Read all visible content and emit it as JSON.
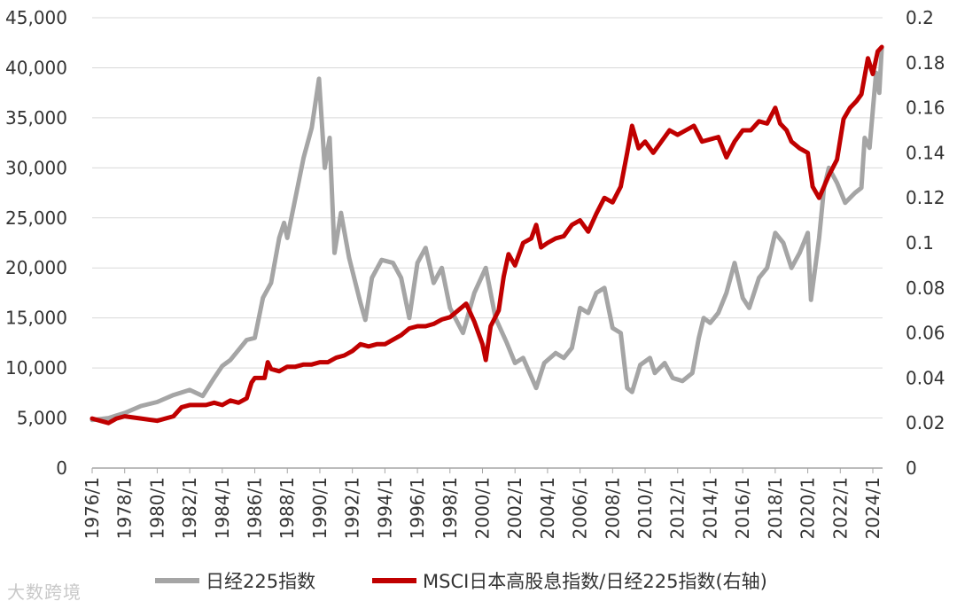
{
  "chart_data": {
    "type": "line",
    "title": "",
    "xlabel": "",
    "ylabel": "",
    "x_range": [
      1976.0,
      2024.6
    ],
    "x_ticks": [
      "1976/1",
      "1978/1",
      "1980/1",
      "1982/1",
      "1984/1",
      "1986/1",
      "1988/1",
      "1990/1",
      "1992/1",
      "1994/1",
      "1996/1",
      "1998/1",
      "2000/1",
      "2002/1",
      "2004/1",
      "2006/1",
      "2008/1",
      "2010/1",
      "2012/1",
      "2014/1",
      "2016/1",
      "2018/1",
      "2020/1",
      "2022/1",
      "2024/1"
    ],
    "y_left": {
      "range": [
        0,
        45000
      ],
      "ticks": [
        "0",
        "5,000",
        "10,000",
        "15,000",
        "20,000",
        "25,000",
        "30,000",
        "35,000",
        "40,000",
        "45,000"
      ]
    },
    "y_right": {
      "range": [
        0,
        0.2
      ],
      "ticks": [
        "0",
        "0.02",
        "0.04",
        "0.06",
        "0.08",
        "0.1",
        "0.12",
        "0.14",
        "0.16",
        "0.18",
        "0.2"
      ]
    },
    "grid": "horizontal",
    "legend_position": "bottom",
    "series": [
      {
        "name": "日经225指数",
        "axis": "left",
        "color": "#a5a5a5",
        "points": [
          [
            1976.0,
            4800
          ],
          [
            1977.0,
            5000
          ],
          [
            1978.0,
            5500
          ],
          [
            1979.0,
            6200
          ],
          [
            1980.0,
            6600
          ],
          [
            1981.0,
            7300
          ],
          [
            1982.0,
            7800
          ],
          [
            1982.8,
            7200
          ],
          [
            1983.5,
            9000
          ],
          [
            1984.0,
            10200
          ],
          [
            1984.5,
            10800
          ],
          [
            1985.0,
            11800
          ],
          [
            1985.5,
            12800
          ],
          [
            1986.0,
            13000
          ],
          [
            1986.5,
            17000
          ],
          [
            1987.0,
            18500
          ],
          [
            1987.5,
            23000
          ],
          [
            1987.8,
            24500
          ],
          [
            1988.0,
            23000
          ],
          [
            1988.5,
            27000
          ],
          [
            1989.0,
            31000
          ],
          [
            1989.5,
            34000
          ],
          [
            1989.95,
            38900
          ],
          [
            1990.3,
            30000
          ],
          [
            1990.6,
            33000
          ],
          [
            1990.9,
            21500
          ],
          [
            1991.3,
            25500
          ],
          [
            1991.8,
            21000
          ],
          [
            1992.5,
            16500
          ],
          [
            1992.8,
            14800
          ],
          [
            1993.2,
            19000
          ],
          [
            1993.8,
            20800
          ],
          [
            1994.5,
            20500
          ],
          [
            1995.0,
            19000
          ],
          [
            1995.5,
            15000
          ],
          [
            1996.0,
            20500
          ],
          [
            1996.5,
            22000
          ],
          [
            1997.0,
            18500
          ],
          [
            1997.5,
            20000
          ],
          [
            1998.0,
            16000
          ],
          [
            1998.8,
            13500
          ],
          [
            1999.5,
            17500
          ],
          [
            2000.2,
            20000
          ],
          [
            2000.8,
            15000
          ],
          [
            2001.5,
            12500
          ],
          [
            2002.0,
            10500
          ],
          [
            2002.5,
            11000
          ],
          [
            2003.3,
            8000
          ],
          [
            2003.8,
            10500
          ],
          [
            2004.5,
            11500
          ],
          [
            2005.0,
            11000
          ],
          [
            2005.5,
            12000
          ],
          [
            2006.0,
            16000
          ],
          [
            2006.5,
            15500
          ],
          [
            2007.0,
            17500
          ],
          [
            2007.5,
            18000
          ],
          [
            2008.0,
            14000
          ],
          [
            2008.5,
            13500
          ],
          [
            2008.9,
            8000
          ],
          [
            2009.2,
            7600
          ],
          [
            2009.7,
            10300
          ],
          [
            2010.3,
            11000
          ],
          [
            2010.6,
            9500
          ],
          [
            2011.2,
            10500
          ],
          [
            2011.7,
            9000
          ],
          [
            2012.3,
            8700
          ],
          [
            2012.9,
            9500
          ],
          [
            2013.3,
            13000
          ],
          [
            2013.6,
            15000
          ],
          [
            2014.0,
            14500
          ],
          [
            2014.5,
            15500
          ],
          [
            2015.0,
            17500
          ],
          [
            2015.5,
            20500
          ],
          [
            2016.0,
            17000
          ],
          [
            2016.4,
            16000
          ],
          [
            2017.0,
            19000
          ],
          [
            2017.5,
            20000
          ],
          [
            2018.0,
            23500
          ],
          [
            2018.5,
            22500
          ],
          [
            2019.0,
            20000
          ],
          [
            2019.5,
            21500
          ],
          [
            2020.0,
            23500
          ],
          [
            2020.2,
            16800
          ],
          [
            2020.7,
            23000
          ],
          [
            2021.0,
            28000
          ],
          [
            2021.3,
            30000
          ],
          [
            2021.8,
            28500
          ],
          [
            2022.3,
            26500
          ],
          [
            2022.9,
            27500
          ],
          [
            2023.3,
            28000
          ],
          [
            2023.5,
            33000
          ],
          [
            2023.8,
            32000
          ],
          [
            2024.2,
            39500
          ],
          [
            2024.4,
            37500
          ],
          [
            2024.55,
            42000
          ]
        ]
      },
      {
        "name": "MSCI日本高股息指数/日经225指数(右轴)",
        "axis": "right",
        "color": "#c00000",
        "points": [
          [
            1976.0,
            0.022
          ],
          [
            1976.5,
            0.021
          ],
          [
            1977.0,
            0.02
          ],
          [
            1977.5,
            0.022
          ],
          [
            1978.0,
            0.023
          ],
          [
            1979.0,
            0.022
          ],
          [
            1980.0,
            0.021
          ],
          [
            1980.5,
            0.022
          ],
          [
            1981.0,
            0.023
          ],
          [
            1981.5,
            0.027
          ],
          [
            1982.0,
            0.028
          ],
          [
            1983.0,
            0.028
          ],
          [
            1983.5,
            0.029
          ],
          [
            1984.0,
            0.028
          ],
          [
            1984.5,
            0.03
          ],
          [
            1985.0,
            0.029
          ],
          [
            1985.5,
            0.031
          ],
          [
            1985.8,
            0.038
          ],
          [
            1986.0,
            0.04
          ],
          [
            1986.6,
            0.04
          ],
          [
            1986.8,
            0.047
          ],
          [
            1987.0,
            0.044
          ],
          [
            1987.5,
            0.043
          ],
          [
            1988.0,
            0.045
          ],
          [
            1988.5,
            0.045
          ],
          [
            1989.0,
            0.046
          ],
          [
            1989.5,
            0.046
          ],
          [
            1990.0,
            0.047
          ],
          [
            1990.5,
            0.047
          ],
          [
            1991.0,
            0.049
          ],
          [
            1991.5,
            0.05
          ],
          [
            1992.0,
            0.052
          ],
          [
            1992.5,
            0.055
          ],
          [
            1993.0,
            0.054
          ],
          [
            1993.5,
            0.055
          ],
          [
            1994.0,
            0.055
          ],
          [
            1994.5,
            0.057
          ],
          [
            1995.0,
            0.059
          ],
          [
            1995.5,
            0.062
          ],
          [
            1996.0,
            0.063
          ],
          [
            1996.5,
            0.063
          ],
          [
            1997.0,
            0.064
          ],
          [
            1997.5,
            0.066
          ],
          [
            1998.0,
            0.067
          ],
          [
            1998.5,
            0.07
          ],
          [
            1999.0,
            0.073
          ],
          [
            1999.5,
            0.065
          ],
          [
            2000.0,
            0.055
          ],
          [
            2000.2,
            0.048
          ],
          [
            2000.5,
            0.063
          ],
          [
            2001.0,
            0.07
          ],
          [
            2001.3,
            0.085
          ],
          [
            2001.6,
            0.095
          ],
          [
            2002.0,
            0.09
          ],
          [
            2002.5,
            0.1
          ],
          [
            2003.0,
            0.102
          ],
          [
            2003.3,
            0.108
          ],
          [
            2003.6,
            0.098
          ],
          [
            2004.0,
            0.1
          ],
          [
            2004.5,
            0.102
          ],
          [
            2005.0,
            0.103
          ],
          [
            2005.5,
            0.108
          ],
          [
            2006.0,
            0.11
          ],
          [
            2006.5,
            0.105
          ],
          [
            2007.0,
            0.113
          ],
          [
            2007.5,
            0.12
          ],
          [
            2008.0,
            0.118
          ],
          [
            2008.5,
            0.125
          ],
          [
            2008.9,
            0.14
          ],
          [
            2009.2,
            0.152
          ],
          [
            2009.6,
            0.142
          ],
          [
            2010.0,
            0.145
          ],
          [
            2010.5,
            0.14
          ],
          [
            2011.0,
            0.145
          ],
          [
            2011.5,
            0.15
          ],
          [
            2012.0,
            0.148
          ],
          [
            2012.5,
            0.15
          ],
          [
            2013.0,
            0.152
          ],
          [
            2013.5,
            0.145
          ],
          [
            2014.0,
            0.146
          ],
          [
            2014.5,
            0.147
          ],
          [
            2015.0,
            0.138
          ],
          [
            2015.5,
            0.145
          ],
          [
            2016.0,
            0.15
          ],
          [
            2016.5,
            0.15
          ],
          [
            2017.0,
            0.154
          ],
          [
            2017.5,
            0.153
          ],
          [
            2018.0,
            0.16
          ],
          [
            2018.3,
            0.153
          ],
          [
            2018.7,
            0.15
          ],
          [
            2019.0,
            0.145
          ],
          [
            2019.5,
            0.142
          ],
          [
            2020.0,
            0.14
          ],
          [
            2020.3,
            0.125
          ],
          [
            2020.7,
            0.12
          ],
          [
            2021.0,
            0.125
          ],
          [
            2021.3,
            0.13
          ],
          [
            2021.8,
            0.137
          ],
          [
            2022.2,
            0.155
          ],
          [
            2022.6,
            0.16
          ],
          [
            2023.0,
            0.163
          ],
          [
            2023.3,
            0.166
          ],
          [
            2023.7,
            0.182
          ],
          [
            2024.0,
            0.175
          ],
          [
            2024.3,
            0.185
          ],
          [
            2024.55,
            0.187
          ]
        ]
      }
    ]
  },
  "watermark": "大数跨境"
}
